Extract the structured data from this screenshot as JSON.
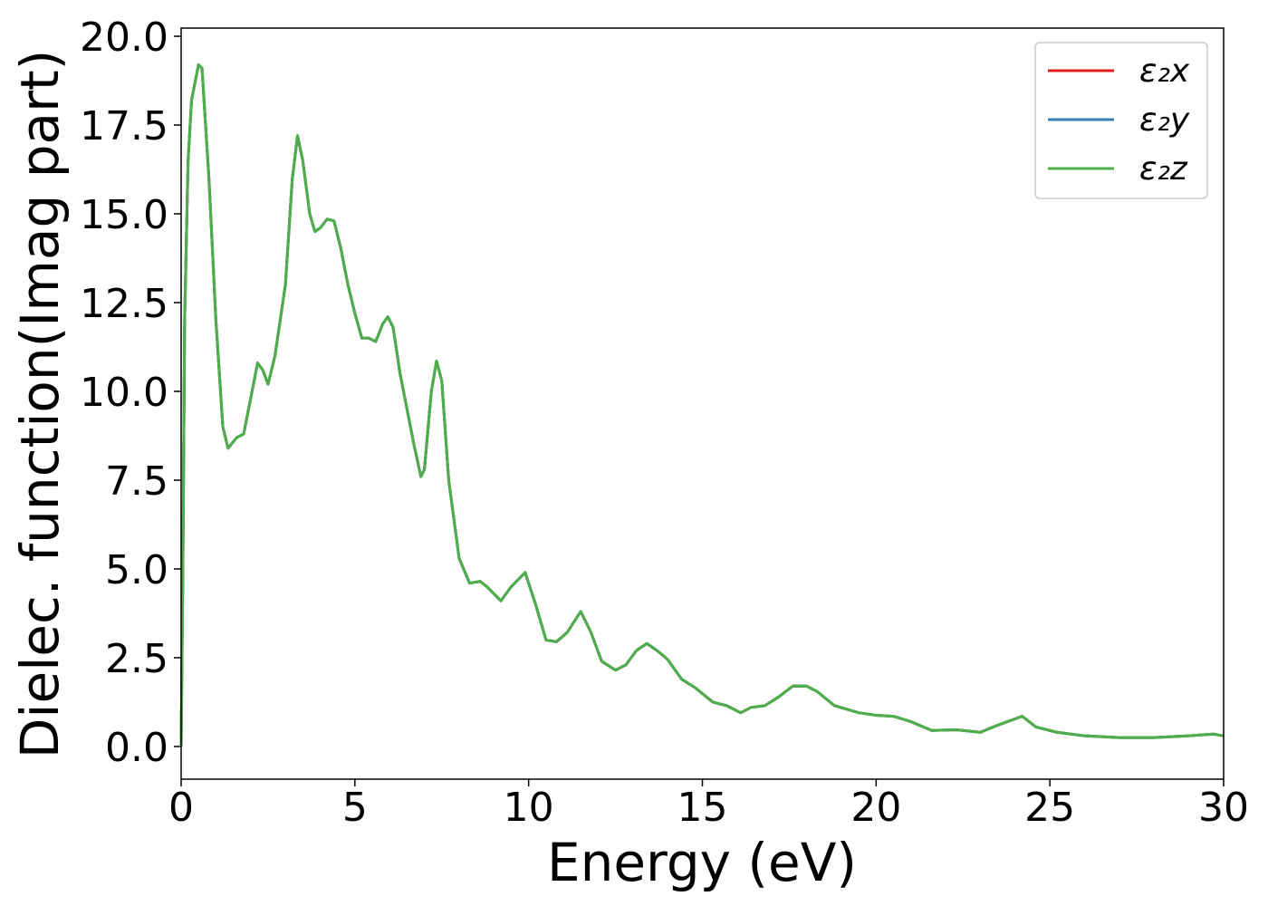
{
  "chart_data": {
    "type": "line",
    "x_label": "Energy (eV)",
    "y_label": "Dielec. function(Imag part)",
    "xlim": [
      0,
      30
    ],
    "ylim": [
      -0.92,
      20.23
    ],
    "xticks": [
      0,
      5,
      10,
      15,
      20,
      25,
      30
    ],
    "yticks": [
      {
        "value": 0,
        "label": "0.0"
      },
      2.5,
      {
        "value": 5,
        "label": "5.0"
      },
      7.5,
      {
        "value": 10,
        "label": "10.0"
      },
      12.5,
      {
        "value": 15,
        "label": "15.0"
      },
      17.5,
      {
        "value": 20,
        "label": "20.0"
      }
    ],
    "legend": "upper right",
    "x": [
      0,
      0.05,
      0.1,
      0.2,
      0.3,
      0.5,
      0.6,
      0.8,
      1.0,
      1.2,
      1.35,
      1.6,
      1.8,
      2.0,
      2.2,
      2.35,
      2.5,
      2.7,
      3.0,
      3.2,
      3.35,
      3.5,
      3.7,
      3.85,
      4.0,
      4.2,
      4.4,
      4.6,
      4.8,
      5.0,
      5.2,
      5.4,
      5.6,
      5.8,
      5.95,
      6.1,
      6.3,
      6.5,
      6.7,
      6.9,
      7.0,
      7.2,
      7.35,
      7.5,
      7.7,
      8.0,
      8.3,
      8.6,
      8.8,
      9.2,
      9.5,
      9.9,
      10.2,
      10.5,
      10.8,
      11.1,
      11.5,
      11.8,
      12.1,
      12.5,
      12.8,
      13.1,
      13.4,
      13.7,
      14.0,
      14.4,
      14.8,
      15.3,
      15.7,
      16.1,
      16.4,
      16.8,
      17.2,
      17.6,
      18.0,
      18.3,
      18.8,
      19.5,
      20.0,
      20.5,
      21.0,
      21.6,
      22.3,
      23.0,
      23.5,
      24.2,
      24.6,
      25.2,
      26.0,
      27.0,
      28.0,
      29.0,
      29.7,
      30.0
    ],
    "series": [
      {
        "name": "ε₂x",
        "color": "#e41a1c",
        "values": [
          0,
          5,
          12,
          16.5,
          18.2,
          19.2,
          19.1,
          16,
          12,
          9,
          8.4,
          8.7,
          8.8,
          9.8,
          10.8,
          10.6,
          10.2,
          11.0,
          13.0,
          16.0,
          17.2,
          16.5,
          15,
          14.5,
          14.6,
          14.85,
          14.8,
          14.0,
          13.0,
          12.2,
          11.5,
          11.5,
          11.4,
          11.9,
          12.1,
          11.8,
          10.5,
          9.5,
          8.5,
          7.6,
          7.8,
          10.0,
          10.85,
          10.3,
          7.5,
          5.3,
          4.6,
          4.65,
          4.5,
          4.1,
          4.5,
          4.9,
          4.0,
          3.0,
          2.95,
          3.2,
          3.8,
          3.2,
          2.4,
          2.15,
          2.3,
          2.7,
          2.9,
          2.7,
          2.45,
          1.9,
          1.65,
          1.25,
          1.15,
          0.95,
          1.1,
          1.15,
          1.4,
          1.7,
          1.7,
          1.55,
          1.15,
          0.95,
          0.88,
          0.85,
          0.7,
          0.45,
          0.47,
          0.4,
          0.6,
          0.85,
          0.55,
          0.4,
          0.3,
          0.25,
          0.25,
          0.3,
          0.35,
          0.3
        ]
      },
      {
        "name": "ε₂y",
        "color": "#377eb8",
        "values": [
          0,
          5,
          12,
          16.5,
          18.2,
          19.2,
          19.1,
          16,
          12,
          9,
          8.4,
          8.7,
          8.8,
          9.8,
          10.8,
          10.6,
          10.2,
          11.0,
          13.0,
          16.0,
          17.2,
          16.5,
          15,
          14.5,
          14.6,
          14.85,
          14.8,
          14.0,
          13.0,
          12.2,
          11.5,
          11.5,
          11.4,
          11.9,
          12.1,
          11.8,
          10.5,
          9.5,
          8.5,
          7.6,
          7.8,
          10.0,
          10.85,
          10.3,
          7.5,
          5.3,
          4.6,
          4.65,
          4.5,
          4.1,
          4.5,
          4.9,
          4.0,
          3.0,
          2.95,
          3.2,
          3.8,
          3.2,
          2.4,
          2.15,
          2.3,
          2.7,
          2.9,
          2.7,
          2.45,
          1.9,
          1.65,
          1.25,
          1.15,
          0.95,
          1.1,
          1.15,
          1.4,
          1.7,
          1.7,
          1.55,
          1.15,
          0.95,
          0.88,
          0.85,
          0.7,
          0.45,
          0.47,
          0.4,
          0.6,
          0.85,
          0.55,
          0.4,
          0.3,
          0.25,
          0.25,
          0.3,
          0.35,
          0.3
        ]
      },
      {
        "name": "ε₂z",
        "color": "#4daf4a",
        "values": [
          0,
          5,
          12,
          16.5,
          18.2,
          19.2,
          19.1,
          16,
          12,
          9,
          8.4,
          8.7,
          8.8,
          9.8,
          10.8,
          10.6,
          10.2,
          11.0,
          13.0,
          16.0,
          17.2,
          16.5,
          15,
          14.5,
          14.6,
          14.85,
          14.8,
          14.0,
          13.0,
          12.2,
          11.5,
          11.5,
          11.4,
          11.9,
          12.1,
          11.8,
          10.5,
          9.5,
          8.5,
          7.6,
          7.8,
          10.0,
          10.85,
          10.3,
          7.5,
          5.3,
          4.6,
          4.65,
          4.5,
          4.1,
          4.5,
          4.9,
          4.0,
          3.0,
          2.95,
          3.2,
          3.8,
          3.2,
          2.4,
          2.15,
          2.3,
          2.7,
          2.9,
          2.7,
          2.45,
          1.9,
          1.65,
          1.25,
          1.15,
          0.95,
          1.1,
          1.15,
          1.4,
          1.7,
          1.7,
          1.55,
          1.15,
          0.95,
          0.88,
          0.85,
          0.7,
          0.45,
          0.47,
          0.4,
          0.6,
          0.85,
          0.55,
          0.4,
          0.3,
          0.25,
          0.25,
          0.3,
          0.35,
          0.3
        ]
      }
    ]
  }
}
